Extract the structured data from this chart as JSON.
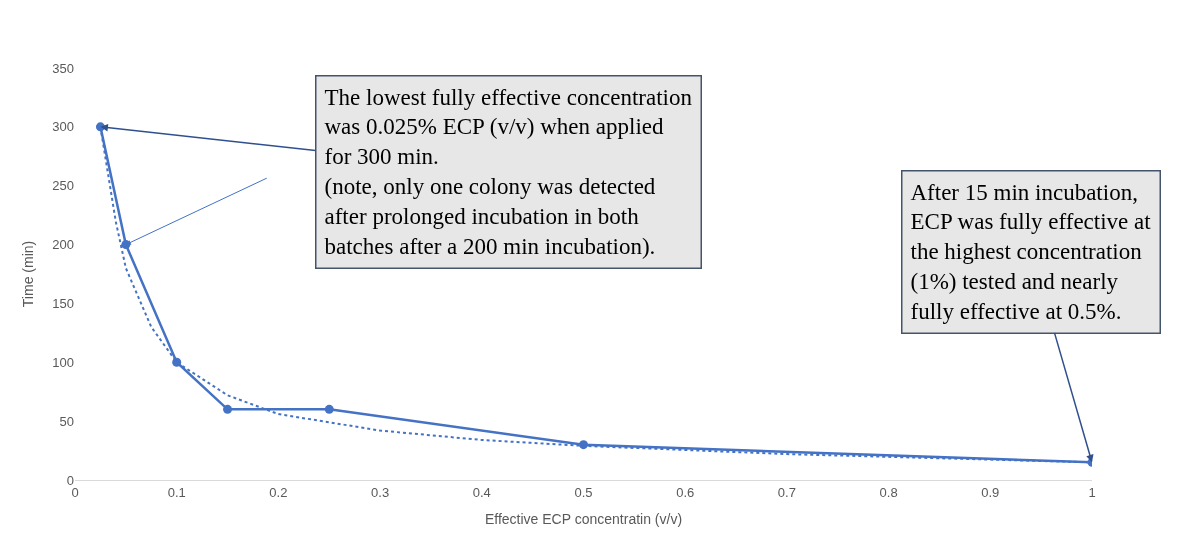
{
  "chart_data": {
    "type": "line",
    "xlabel": "Effective ECP concentratin (v/v)",
    "ylabel": "Time (min)",
    "xlim": [
      0,
      1
    ],
    "xticks": [
      0,
      0.1,
      0.2,
      0.3,
      0.4,
      0.5,
      0.6,
      0.7,
      0.8,
      0.9,
      1
    ],
    "ylim": [
      0,
      350
    ],
    "yticks": [
      0,
      50,
      100,
      150,
      200,
      250,
      300,
      350
    ],
    "legend": false,
    "marker": "circle",
    "line_style": "solid",
    "x": [
      0.025,
      0.05,
      0.1,
      0.15,
      0.25,
      0.5,
      1
    ],
    "series": [
      {
        "color": "#4472c4",
        "values": [
          300,
          200,
          100,
          60,
          60,
          30,
          15
        ]
      },
      {
        "type": "line",
        "color": "#4472c4",
        "marker": "none",
        "line_style": "dotted",
        "x": [
          0.025,
          0.04,
          0.05,
          0.075,
          0.1,
          0.15,
          0.2,
          0.3,
          0.4,
          0.5,
          0.7,
          1
        ],
        "values": [
          300,
          220,
          180,
          130,
          100,
          72,
          56,
          42,
          34,
          29,
          22,
          15
        ]
      }
    ],
    "annotations": [
      {
        "text": "The lowest fully effective concentration\nwas 0.025% ECP (v/v) when applied\nfor 300 min.\n(note, only one colony was detected\nafter prolonged incubation in both\nbatches after a 200 min incubation).",
        "x": 0.025,
        "y": 300
      },
      {
        "text": "After 15 min incubation,\nECP was fully effective at\nthe highest concentration\n(1%) tested and nearly\nfully effective at 0.5%.",
        "x": 1,
        "y": 15
      }
    ]
  }
}
